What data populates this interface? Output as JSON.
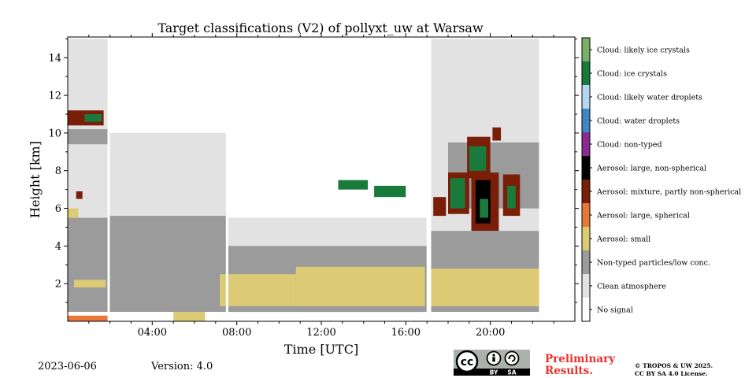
{
  "chart_data": {
    "type": "heatmap",
    "title": "Target classifications (V2) of pollyxt_uw at Warsaw",
    "xlabel": "Time [UTC]",
    "ylabel": "Height [km]",
    "xlim_hours": [
      0,
      24
    ],
    "ylim_km": [
      0,
      15.1
    ],
    "x_ticks": [
      {
        "hour": 4,
        "label": "04:00"
      },
      {
        "hour": 8,
        "label": "08:00"
      },
      {
        "hour": 12,
        "label": "12:00"
      },
      {
        "hour": 16,
        "label": "16:00"
      },
      {
        "hour": 20,
        "label": "20:00"
      }
    ],
    "y_ticks": [
      {
        "value": 2,
        "label": "2"
      },
      {
        "value": 4,
        "label": "4"
      },
      {
        "value": 6,
        "label": "6"
      },
      {
        "value": 8,
        "label": "8"
      },
      {
        "value": 10,
        "label": "10"
      },
      {
        "value": 12,
        "label": "12"
      },
      {
        "value": 14,
        "label": "14"
      }
    ],
    "classes": [
      {
        "id": 11,
        "label": "Cloud: likely ice crystals",
        "color": "#78b164"
      },
      {
        "id": 10,
        "label": "Cloud: ice crystals",
        "color": "#1a7a3c"
      },
      {
        "id": 9,
        "label": "Cloud: likely water droplets",
        "color": "#b4d6f2"
      },
      {
        "id": 8,
        "label": "Cloud: water droplets",
        "color": "#3f86c5"
      },
      {
        "id": 7,
        "label": "Cloud: non-typed",
        "color": "#8a2a92"
      },
      {
        "id": 6,
        "label": "Aerosol: large, non-spherical",
        "color": "#000000"
      },
      {
        "id": 5,
        "label": "Aerosol: mixture, partly non-spherical",
        "color": "#7a1e08"
      },
      {
        "id": 4,
        "label": "Aerosol: large, spherical",
        "color": "#e87738"
      },
      {
        "id": 3,
        "label": "Aerosol: small",
        "color": "#dccb74"
      },
      {
        "id": 2,
        "label": "Non-typed particles/low conc.",
        "color": "#9b9b9b"
      },
      {
        "id": 1,
        "label": "Clean atmosphere",
        "color": "#e2e2e2"
      },
      {
        "id": 0,
        "label": "No signal",
        "color": "#ffffff"
      }
    ],
    "regions": [
      {
        "class": "Clean atmosphere",
        "t0": 0.0,
        "t1": 1.9,
        "h0": 5.5,
        "h1": 15.0
      },
      {
        "class": "Clean atmosphere",
        "t0": 1.95,
        "t1": 7.5,
        "h0": 4.0,
        "h1": 10.0
      },
      {
        "class": "Clean atmosphere",
        "t0": 7.6,
        "t1": 17.0,
        "h0": 3.0,
        "h1": 5.5
      },
      {
        "class": "Clean atmosphere",
        "t0": 17.2,
        "t1": 22.3,
        "h0": 4.8,
        "h1": 15.0
      },
      {
        "class": "Non-typed particles/low conc.",
        "t0": 0.0,
        "t1": 1.9,
        "h0": 0.5,
        "h1": 5.5
      },
      {
        "class": "Non-typed particles/low conc.",
        "t0": 0.0,
        "t1": 1.9,
        "h0": 9.4,
        "h1": 10.2
      },
      {
        "class": "Non-typed particles/low conc.",
        "t0": 1.95,
        "t1": 7.5,
        "h0": 0.5,
        "h1": 5.6
      },
      {
        "class": "Non-typed particles/low conc.",
        "t0": 7.6,
        "t1": 17.0,
        "h0": 0.5,
        "h1": 4.0
      },
      {
        "class": "Non-typed particles/low conc.",
        "t0": 17.2,
        "t1": 22.3,
        "h0": 0.5,
        "h1": 4.8
      },
      {
        "class": "Non-typed particles/low conc.",
        "t0": 18.0,
        "t1": 22.3,
        "h0": 6.0,
        "h1": 9.5
      },
      {
        "class": "Aerosol: small",
        "t0": 0.0,
        "t1": 0.5,
        "h0": 5.5,
        "h1": 6.0
      },
      {
        "class": "Aerosol: small",
        "t0": 0.3,
        "t1": 1.8,
        "h0": 1.8,
        "h1": 2.2
      },
      {
        "class": "Aerosol: small",
        "t0": 5.0,
        "t1": 6.5,
        "h0": 0.0,
        "h1": 0.5
      },
      {
        "class": "Aerosol: small",
        "t0": 7.2,
        "t1": 10.8,
        "h0": 0.8,
        "h1": 2.5
      },
      {
        "class": "Aerosol: small",
        "t0": 10.8,
        "t1": 16.9,
        "h0": 0.8,
        "h1": 2.9
      },
      {
        "class": "Aerosol: small",
        "t0": 17.2,
        "t1": 22.3,
        "h0": 0.8,
        "h1": 2.8
      },
      {
        "class": "Aerosol: large, spherical",
        "t0": 0.0,
        "t1": 1.9,
        "h0": 0.0,
        "h1": 0.3
      },
      {
        "class": "Aerosol: mixture, partly non-spherical",
        "t0": 0.0,
        "t1": 1.7,
        "h0": 10.4,
        "h1": 11.2
      },
      {
        "class": "Aerosol: mixture, partly non-spherical",
        "t0": 0.4,
        "t1": 0.7,
        "h0": 6.5,
        "h1": 6.9
      },
      {
        "class": "Cloud: ice crystals",
        "t0": 0.8,
        "t1": 1.6,
        "h0": 10.6,
        "h1": 11.0
      },
      {
        "class": "Aerosol: mixture, partly non-spherical",
        "t0": 18.9,
        "t1": 20.0,
        "h0": 7.6,
        "h1": 9.8
      },
      {
        "class": "Cloud: ice crystals",
        "t0": 19.0,
        "t1": 19.8,
        "h0": 8.0,
        "h1": 9.3
      },
      {
        "class": "Aerosol: mixture, partly non-spherical",
        "t0": 17.3,
        "t1": 17.9,
        "h0": 5.6,
        "h1": 6.6
      },
      {
        "class": "Aerosol: mixture, partly non-spherical",
        "t0": 18.0,
        "t1": 19.0,
        "h0": 5.7,
        "h1": 7.9
      },
      {
        "class": "Cloud: ice crystals",
        "t0": 18.1,
        "t1": 18.8,
        "h0": 6.0,
        "h1": 7.6
      },
      {
        "class": "Aerosol: mixture, partly non-spherical",
        "t0": 19.1,
        "t1": 20.4,
        "h0": 4.8,
        "h1": 7.9
      },
      {
        "class": "Aerosol: large, non-spherical",
        "t0": 19.3,
        "t1": 20.0,
        "h0": 5.2,
        "h1": 7.5
      },
      {
        "class": "Cloud: ice crystals",
        "t0": 19.5,
        "t1": 19.9,
        "h0": 5.5,
        "h1": 6.5
      },
      {
        "class": "Aerosol: mixture, partly non-spherical",
        "t0": 20.6,
        "t1": 21.4,
        "h0": 5.6,
        "h1": 7.8
      },
      {
        "class": "Cloud: ice crystals",
        "t0": 20.8,
        "t1": 21.2,
        "h0": 6.0,
        "h1": 7.2
      },
      {
        "class": "Aerosol: mixture, partly non-spherical",
        "t0": 20.1,
        "t1": 20.5,
        "h0": 9.6,
        "h1": 10.3
      },
      {
        "class": "Cloud: ice crystals",
        "t0": 14.5,
        "t1": 16.0,
        "h0": 6.6,
        "h1": 7.2
      },
      {
        "class": "Cloud: ice crystals",
        "t0": 12.8,
        "t1": 14.2,
        "h0": 7.0,
        "h1": 7.5
      }
    ],
    "no_signal_gaps_hours": [
      1.92,
      7.52,
      17.02
    ]
  },
  "footer": {
    "date": "2023-06-06",
    "version": "Version: 4.0",
    "preliminary_line1": "Preliminary",
    "preliminary_line2": "Results.",
    "copyright_line1": "© TROPOS & UW 2025.",
    "copyright_line2": "CC BY SA 4.0 License.",
    "cc_logo_text": "cc",
    "cc_by": "BY",
    "cc_sa": "SA"
  }
}
